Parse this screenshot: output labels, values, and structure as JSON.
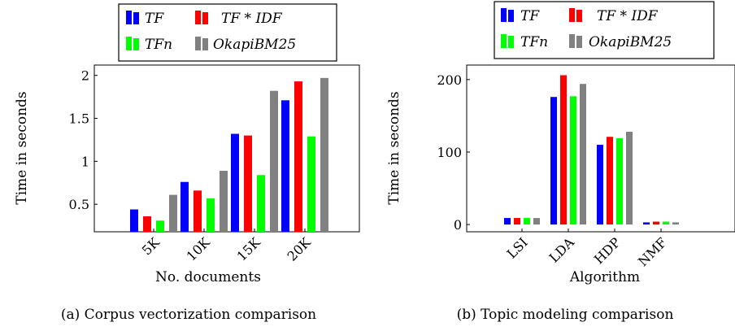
{
  "chart_data": [
    {
      "type": "bar",
      "caption": "(a) Corpus vectorization comparison",
      "categories": [
        "5K",
        "10K",
        "15K",
        "20K"
      ],
      "series": [
        {
          "name": "TF",
          "color": "#0000ff",
          "values": [
            0.44,
            0.76,
            1.32,
            1.71
          ]
        },
        {
          "name": "TF * IDF",
          "color": "#ff0000",
          "values": [
            0.36,
            0.66,
            1.3,
            1.93
          ]
        },
        {
          "name": "TFn",
          "color": "#00ff00",
          "values": [
            0.31,
            0.57,
            0.84,
            1.29
          ]
        },
        {
          "name": "OkapiBM25",
          "color": "#808080",
          "values": [
            0.61,
            0.89,
            1.82,
            1.97
          ]
        }
      ],
      "xlabel": "No. documents",
      "ylabel": "Time in seconds",
      "yticks": [
        0.5,
        1,
        1.5,
        2
      ],
      "ytick_labels": [
        "0.5",
        "1",
        "1.5",
        "2"
      ],
      "ylim": [
        0.18,
        2.12
      ],
      "grid": false,
      "legend_position": "top-outside"
    },
    {
      "type": "bar",
      "caption": "(b) Topic modeling comparison",
      "categories": [
        "LSI",
        "LDA",
        "HDP",
        "NMF"
      ],
      "series": [
        {
          "name": "TF",
          "color": "#0000ff",
          "values": [
            9,
            176,
            110,
            3
          ]
        },
        {
          "name": "TF * IDF",
          "color": "#ff0000",
          "values": [
            9,
            206,
            121,
            4
          ]
        },
        {
          "name": "TFn",
          "color": "#00ff00",
          "values": [
            9,
            177,
            119,
            4
          ]
        },
        {
          "name": "OkapiBM25",
          "color": "#808080",
          "values": [
            9,
            194,
            128,
            3
          ]
        }
      ],
      "xlabel": "Algorithm",
      "ylabel": "Time in seconds",
      "yticks": [
        0,
        100,
        200
      ],
      "ytick_labels": [
        "0",
        "100",
        "200"
      ],
      "ylim": [
        -10,
        220
      ],
      "grid": false,
      "legend_position": "top-outside"
    }
  ]
}
